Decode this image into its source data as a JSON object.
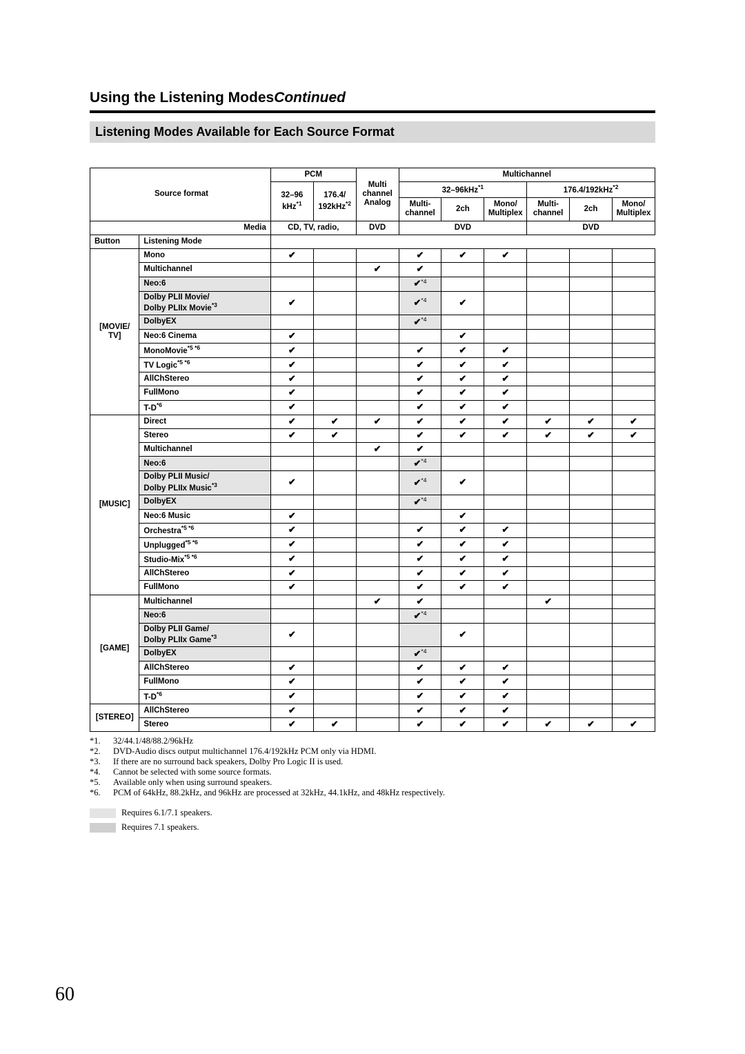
{
  "page_number": "60",
  "page_title_main": "Using the Listening Modes",
  "page_title_cont": "Continued",
  "section_heading": "Listening Modes Available for Each Source Format",
  "headers": {
    "source_format": "Source format",
    "pcm": "PCM",
    "multi_channel_analog": "Multi channel Analog",
    "multichannel": "Multichannel",
    "pcm_32_96": "32–96 kHz",
    "pcm_32_96_sup": "*1",
    "pcm_176": "176.4/ 192kHz",
    "pcm_176_sup": "*2",
    "mc_32_96": "32–96kHz",
    "mc_32_96_sup": "*1",
    "mc_176": "176.4/192kHz",
    "mc_176_sup": "*2",
    "sub_multi": "Multi-channel",
    "sub_2ch": "2ch",
    "sub_mono": "Mono/ Multiplex",
    "media": "Media",
    "media_cd": "CD, TV, radio,",
    "media_dvd": "DVD",
    "button": "Button",
    "listening_mode": "Listening Mode"
  },
  "buttons": {
    "movie": "[MOVIE/ TV]",
    "music": "[MUSIC]",
    "game": "[GAME]",
    "stereo": "[STEREO]"
  },
  "rows": {
    "movie": [
      {
        "mode": "Mono",
        "sup": "",
        "shade": "",
        "c": [
          "y",
          "",
          "",
          "y",
          "y",
          "y",
          "",
          "",
          ""
        ]
      },
      {
        "mode": "Multichannel",
        "sup": "",
        "shade": "",
        "c": [
          "",
          "",
          "y",
          "y",
          "",
          "",
          "",
          "",
          ""
        ]
      },
      {
        "mode": "Neo:6",
        "sup": "",
        "shade": "1",
        "c": [
          "",
          "",
          "",
          "y4",
          "",
          "",
          "",
          "",
          ""
        ]
      },
      {
        "mode": "Dolby PLII Movie/ Dolby PLIIx Movie",
        "sup": "*3",
        "shade": "1",
        "c": [
          "y",
          "",
          "",
          "y4",
          "y",
          "",
          "",
          "",
          ""
        ]
      },
      {
        "mode": "DolbyEX",
        "sup": "",
        "shade": "1",
        "c": [
          "",
          "",
          "",
          "y4",
          "",
          "",
          "",
          "",
          ""
        ]
      },
      {
        "mode": "Neo:6 Cinema",
        "sup": "",
        "shade": "",
        "c": [
          "y",
          "",
          "",
          "",
          "y",
          "",
          "",
          "",
          ""
        ]
      },
      {
        "mode": "MonoMovie",
        "sup": "*5 *6",
        "shade": "",
        "c": [
          "y",
          "",
          "",
          "y",
          "y",
          "y",
          "",
          "",
          ""
        ]
      },
      {
        "mode": "TV Logic",
        "sup": "*5 *6",
        "shade": "",
        "c": [
          "y",
          "",
          "",
          "y",
          "y",
          "y",
          "",
          "",
          ""
        ]
      },
      {
        "mode": "AllChStereo",
        "sup": "",
        "shade": "",
        "c": [
          "y",
          "",
          "",
          "y",
          "y",
          "y",
          "",
          "",
          ""
        ]
      },
      {
        "mode": "FullMono",
        "sup": "",
        "shade": "",
        "c": [
          "y",
          "",
          "",
          "y",
          "y",
          "y",
          "",
          "",
          ""
        ]
      },
      {
        "mode": "T-D",
        "sup": "*6",
        "shade": "",
        "c": [
          "y",
          "",
          "",
          "y",
          "y",
          "y",
          "",
          "",
          ""
        ]
      }
    ],
    "music": [
      {
        "mode": "Direct",
        "sup": "",
        "shade": "",
        "c": [
          "y",
          "y",
          "y",
          "y",
          "y",
          "y",
          "y",
          "y",
          "y"
        ]
      },
      {
        "mode": "Stereo",
        "sup": "",
        "shade": "",
        "c": [
          "y",
          "y",
          "",
          "y",
          "y",
          "y",
          "y",
          "y",
          "y"
        ]
      },
      {
        "mode": "Multichannel",
        "sup": "",
        "shade": "",
        "c": [
          "",
          "",
          "y",
          "y",
          "",
          "",
          "",
          "",
          ""
        ]
      },
      {
        "mode": "Neo:6",
        "sup": "",
        "shade": "1",
        "c": [
          "",
          "",
          "",
          "y4",
          "",
          "",
          "",
          "",
          ""
        ]
      },
      {
        "mode": "Dolby PLII Music/ Dolby PLIIx Music",
        "sup": "*3",
        "shade": "1",
        "c": [
          "y",
          "",
          "",
          "y4",
          "y",
          "",
          "",
          "",
          ""
        ]
      },
      {
        "mode": "DolbyEX",
        "sup": "",
        "shade": "1",
        "c": [
          "",
          "",
          "",
          "y4",
          "",
          "",
          "",
          "",
          ""
        ]
      },
      {
        "mode": "Neo:6 Music",
        "sup": "",
        "shade": "",
        "c": [
          "y",
          "",
          "",
          "",
          "y",
          "",
          "",
          "",
          ""
        ]
      },
      {
        "mode": "Orchestra",
        "sup": "*5 *6",
        "shade": "",
        "c": [
          "y",
          "",
          "",
          "y",
          "y",
          "y",
          "",
          "",
          ""
        ]
      },
      {
        "mode": "Unplugged",
        "sup": "*5 *6",
        "shade": "",
        "c": [
          "y",
          "",
          "",
          "y",
          "y",
          "y",
          "",
          "",
          ""
        ]
      },
      {
        "mode": "Studio-Mix",
        "sup": "*5 *6",
        "shade": "",
        "c": [
          "y",
          "",
          "",
          "y",
          "y",
          "y",
          "",
          "",
          ""
        ]
      },
      {
        "mode": "AllChStereo",
        "sup": "",
        "shade": "",
        "c": [
          "y",
          "",
          "",
          "y",
          "y",
          "y",
          "",
          "",
          ""
        ]
      },
      {
        "mode": "FullMono",
        "sup": "",
        "shade": "",
        "c": [
          "y",
          "",
          "",
          "y",
          "y",
          "y",
          "",
          "",
          ""
        ]
      }
    ],
    "game": [
      {
        "mode": "Multichannel",
        "sup": "",
        "shade": "",
        "c": [
          "",
          "",
          "y",
          "y",
          "",
          "",
          "y",
          "",
          ""
        ]
      },
      {
        "mode": "Neo:6",
        "sup": "",
        "shade": "1",
        "c": [
          "",
          "",
          "",
          "y4",
          "",
          "",
          "",
          "",
          ""
        ]
      },
      {
        "mode": "Dolby PLII Game/ Dolby PLIIx Game",
        "sup": "*3",
        "shade": "1",
        "c": [
          "y",
          "",
          "",
          "",
          "y",
          "",
          "",
          "",
          ""
        ]
      },
      {
        "mode": "DolbyEX",
        "sup": "",
        "shade": "1",
        "c": [
          "",
          "",
          "",
          "y4",
          "",
          "",
          "",
          "",
          ""
        ]
      },
      {
        "mode": "AllChStereo",
        "sup": "",
        "shade": "",
        "c": [
          "y",
          "",
          "",
          "y",
          "y",
          "y",
          "",
          "",
          ""
        ]
      },
      {
        "mode": "FullMono",
        "sup": "",
        "shade": "",
        "c": [
          "y",
          "",
          "",
          "y",
          "y",
          "y",
          "",
          "",
          ""
        ]
      },
      {
        "mode": "T-D",
        "sup": "*6",
        "shade": "",
        "c": [
          "y",
          "",
          "",
          "y",
          "y",
          "y",
          "",
          "",
          ""
        ]
      }
    ],
    "stereo": [
      {
        "mode": "AllChStereo",
        "sup": "",
        "shade": "",
        "c": [
          "y",
          "",
          "",
          "y",
          "y",
          "y",
          "",
          "",
          ""
        ]
      },
      {
        "mode": "Stereo",
        "sup": "",
        "shade": "",
        "c": [
          "y",
          "y",
          "",
          "y",
          "y",
          "y",
          "y",
          "y",
          "y"
        ]
      }
    ]
  },
  "footnotes": [
    {
      "n": "*1.",
      "t": "32/44.1/48/88.2/96kHz"
    },
    {
      "n": "*2.",
      "t": "DVD-Audio discs output multichannel 176.4/192kHz PCM only via HDMI."
    },
    {
      "n": "*3.",
      "t": "If there are no surround back speakers, Dolby Pro Logic II is used."
    },
    {
      "n": "*4.",
      "t": "Cannot be selected with some source formats."
    },
    {
      "n": "*5.",
      "t": "Available only when using surround speakers."
    },
    {
      "n": "*6.",
      "t": "PCM of 64kHz, 88.2kHz, and 96kHz are processed at 32kHz, 44.1kHz, and 48kHz respectively."
    }
  ],
  "legend": {
    "light": "Requires 6.1/7.1 speakers.",
    "dark": "Requires 7.1 speakers."
  },
  "colors": {
    "shade_light": "#e4e4e4",
    "shade_dark": "#cfcfcf"
  },
  "check_note_sup": "*4"
}
